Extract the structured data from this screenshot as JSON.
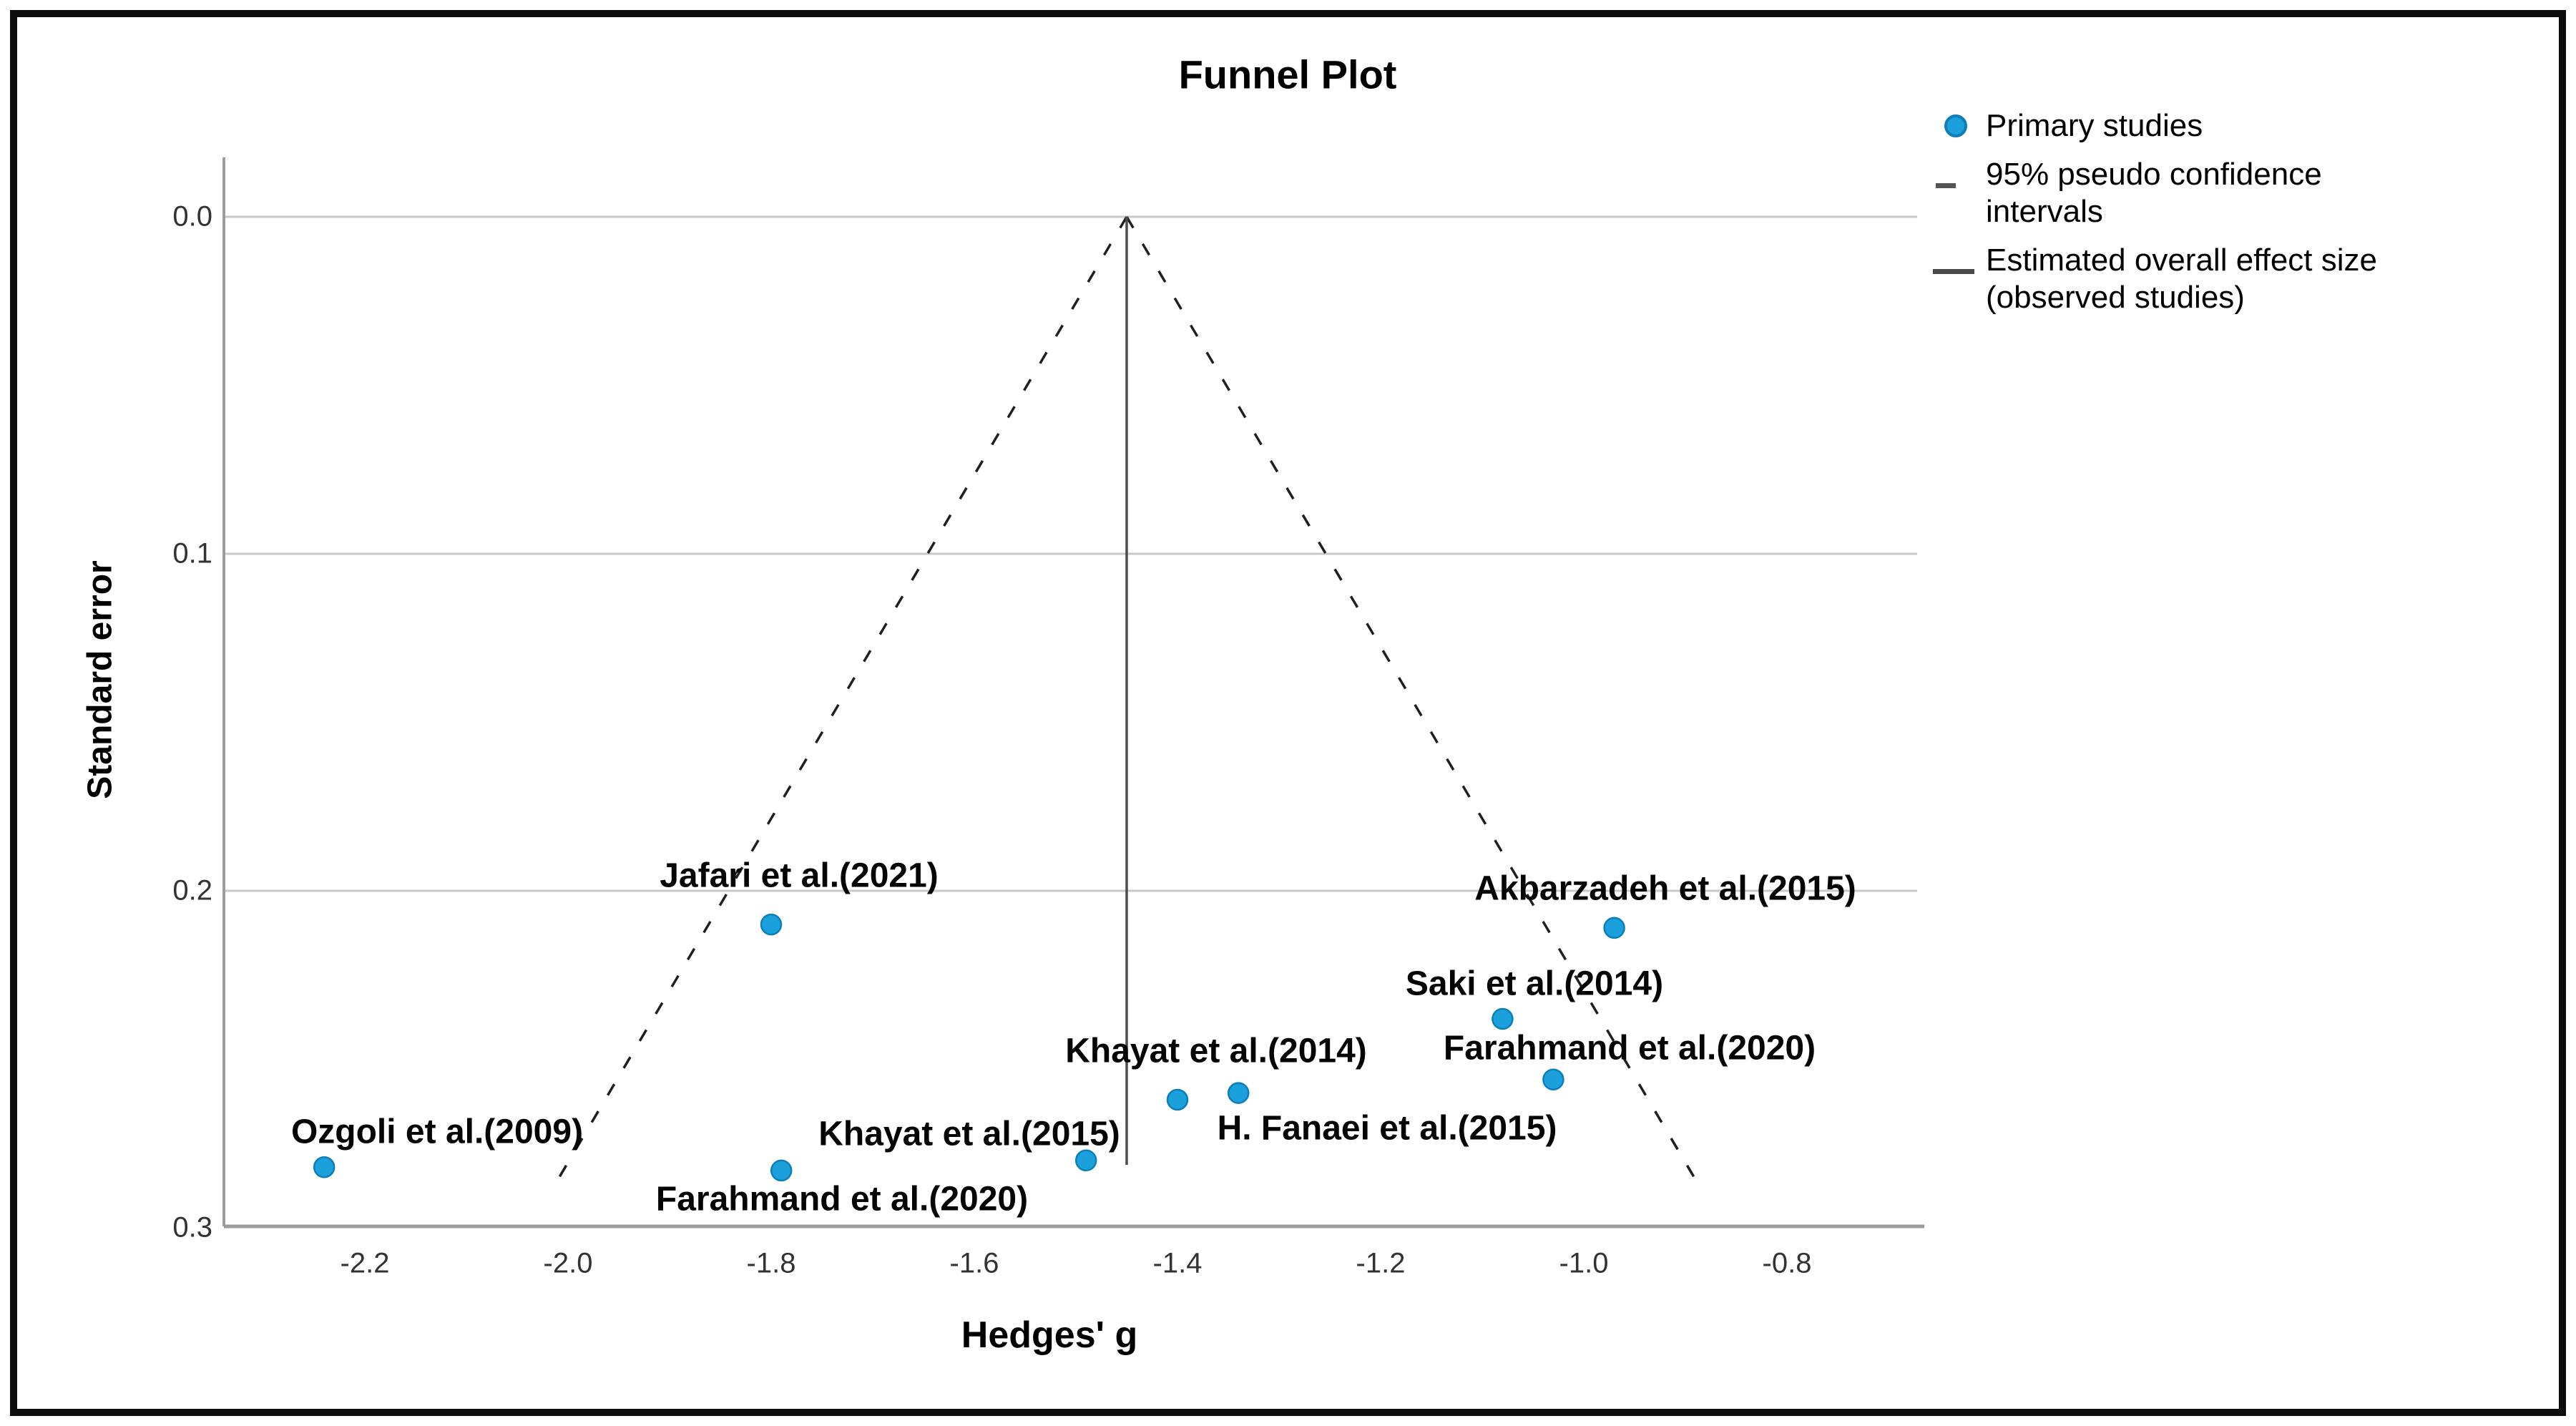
{
  "figure": {
    "title": "Funnel Plot"
  },
  "axes": {
    "x": {
      "label": "Hedges' g",
      "ticks": [
        {
          "label": "-2.2",
          "value": -2.2
        },
        {
          "label": "-2.0",
          "value": -2.0
        },
        {
          "label": "-1.8",
          "value": -1.8
        },
        {
          "label": "-1.6",
          "value": -1.6
        },
        {
          "label": "-1.4",
          "value": -1.4
        },
        {
          "label": "-1.2",
          "value": -1.2
        },
        {
          "label": "-1.0",
          "value": -1.0
        },
        {
          "label": "-0.8",
          "value": -0.8
        }
      ]
    },
    "y": {
      "label": "Standard error",
      "ticks": [
        {
          "label": "0.0",
          "value": 0.0
        },
        {
          "label": "0.1",
          "value": 0.1
        },
        {
          "label": "0.2",
          "value": 0.2
        },
        {
          "label": "0.3",
          "value": 0.3
        }
      ]
    }
  },
  "legend": {
    "items": [
      {
        "symbol": "dot-icon",
        "label": "Primary studies"
      },
      {
        "symbol": "dashed-line-icon",
        "label": "95% pseudo confidence intervals"
      },
      {
        "symbol": "solid-line-icon",
        "label": "Estimated overall effect size (observed studies)"
      }
    ]
  },
  "colors": {
    "point_fill": "#1CA0DC",
    "point_edge": "#0C7FB8",
    "gridline": "#C9C9C9",
    "axis_line": "#9C9C9C",
    "pseudo_ci_line": "#1F1F1F",
    "effect_line": "#4D4D4D",
    "title_text": "#000000",
    "tick_text": "#333333"
  },
  "chart_data": {
    "type": "scatter",
    "title": "Funnel Plot",
    "xlabel": "Hedges' g",
    "ylabel": "Standard error",
    "xlim": [
      -2.34,
      -0.65
    ],
    "ylim": [
      0.0,
      0.3
    ],
    "y_axis_inverted": true,
    "grid": "horizontal",
    "legend_position": "top-right",
    "estimated_overall_effect": -1.45,
    "pseudo_ci_multiplier": 1.96,
    "series": [
      {
        "name": "Primary studies",
        "points": [
          {
            "study": "Ozgoli et al.(2009)",
            "hedges_g": -2.24,
            "standard_error": 0.282
          },
          {
            "study": "Jafari et al.(2021)",
            "hedges_g": -1.8,
            "standard_error": 0.21
          },
          {
            "study": "Farahmand et al.(2020)",
            "hedges_g": -1.79,
            "standard_error": 0.283
          },
          {
            "study": "Khayat et al.(2015)",
            "hedges_g": -1.49,
            "standard_error": 0.28
          },
          {
            "study": "Khayat et al.(2014)",
            "hedges_g": -1.4,
            "standard_error": 0.262
          },
          {
            "study": "H. Fanaei et al.(2015)",
            "hedges_g": -1.34,
            "standard_error": 0.26
          },
          {
            "study": "Saki et al.(2014)",
            "hedges_g": -1.08,
            "standard_error": 0.238
          },
          {
            "study": "Farahmand et al.(2020)",
            "hedges_g": -1.03,
            "standard_error": 0.256
          },
          {
            "study": "Akbarzadeh et al.(2015)",
            "hedges_g": -0.97,
            "standard_error": 0.211
          }
        ]
      }
    ]
  }
}
